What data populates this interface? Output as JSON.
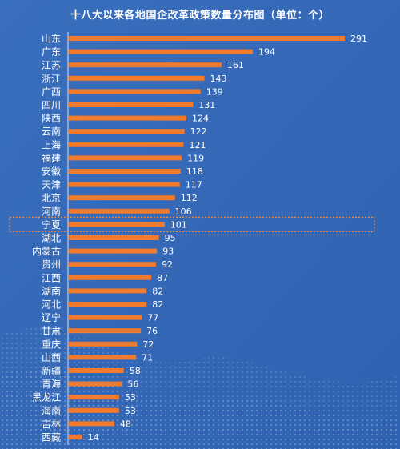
{
  "chart_data": {
    "type": "bar",
    "orientation": "horizontal",
    "title": "十八大以来各地国企改革政策数量分布图（单位：个）",
    "categories": [
      "山东",
      "广东",
      "江苏",
      "浙江",
      "广西",
      "四川",
      "陕西",
      "云南",
      "上海",
      "福建",
      "安徽",
      "天津",
      "北京",
      "河南",
      "宁夏",
      "湖北",
      "内蒙古",
      "贵州",
      "江西",
      "湖南",
      "河北",
      "辽宁",
      "甘肃",
      "重庆",
      "山西",
      "新疆",
      "青海",
      "黑龙江",
      "海南",
      "吉林",
      "西藏"
    ],
    "values": [
      291,
      194,
      161,
      143,
      139,
      131,
      124,
      122,
      121,
      119,
      118,
      117,
      112,
      106,
      101,
      95,
      93,
      92,
      87,
      82,
      82,
      77,
      76,
      72,
      71,
      58,
      56,
      53,
      53,
      48,
      14
    ],
    "highlighted_category": "宁夏",
    "xlim": [
      0,
      291
    ],
    "grid": false,
    "legend": "none"
  },
  "colors": {
    "background": "#3d73c0",
    "bar": "#f07a2e",
    "text": "#ffffff",
    "highlight_border": "#f08a3c"
  }
}
